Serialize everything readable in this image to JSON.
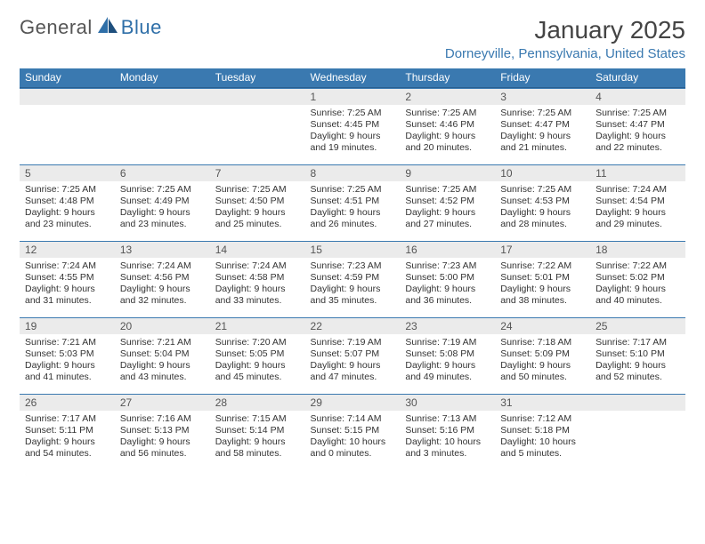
{
  "brand": {
    "part1": "General",
    "part2": "Blue"
  },
  "title": "January 2025",
  "location": "Dorneyville, Pennsylvania, United States",
  "colors": {
    "header_bg": "#3a79b0",
    "header_text": "#ffffff",
    "daynum_bg": "#ebebeb",
    "rule": "#3a79b0",
    "location_text": "#3a79b0",
    "background": "#ffffff"
  },
  "typography": {
    "title_fontsize": 28,
    "location_fontsize": 15,
    "header_fontsize": 12,
    "daynum_fontsize": 12,
    "body_fontsize": 10.5
  },
  "weekdays": [
    "Sunday",
    "Monday",
    "Tuesday",
    "Wednesday",
    "Thursday",
    "Friday",
    "Saturday"
  ],
  "weeks": [
    [
      {
        "n": "",
        "sunrise": "",
        "sunset": "",
        "daylight1": "",
        "daylight2": ""
      },
      {
        "n": "",
        "sunrise": "",
        "sunset": "",
        "daylight1": "",
        "daylight2": ""
      },
      {
        "n": "",
        "sunrise": "",
        "sunset": "",
        "daylight1": "",
        "daylight2": ""
      },
      {
        "n": "1",
        "sunrise": "Sunrise: 7:25 AM",
        "sunset": "Sunset: 4:45 PM",
        "daylight1": "Daylight: 9 hours",
        "daylight2": "and 19 minutes."
      },
      {
        "n": "2",
        "sunrise": "Sunrise: 7:25 AM",
        "sunset": "Sunset: 4:46 PM",
        "daylight1": "Daylight: 9 hours",
        "daylight2": "and 20 minutes."
      },
      {
        "n": "3",
        "sunrise": "Sunrise: 7:25 AM",
        "sunset": "Sunset: 4:47 PM",
        "daylight1": "Daylight: 9 hours",
        "daylight2": "and 21 minutes."
      },
      {
        "n": "4",
        "sunrise": "Sunrise: 7:25 AM",
        "sunset": "Sunset: 4:47 PM",
        "daylight1": "Daylight: 9 hours",
        "daylight2": "and 22 minutes."
      }
    ],
    [
      {
        "n": "5",
        "sunrise": "Sunrise: 7:25 AM",
        "sunset": "Sunset: 4:48 PM",
        "daylight1": "Daylight: 9 hours",
        "daylight2": "and 23 minutes."
      },
      {
        "n": "6",
        "sunrise": "Sunrise: 7:25 AM",
        "sunset": "Sunset: 4:49 PM",
        "daylight1": "Daylight: 9 hours",
        "daylight2": "and 23 minutes."
      },
      {
        "n": "7",
        "sunrise": "Sunrise: 7:25 AM",
        "sunset": "Sunset: 4:50 PM",
        "daylight1": "Daylight: 9 hours",
        "daylight2": "and 25 minutes."
      },
      {
        "n": "8",
        "sunrise": "Sunrise: 7:25 AM",
        "sunset": "Sunset: 4:51 PM",
        "daylight1": "Daylight: 9 hours",
        "daylight2": "and 26 minutes."
      },
      {
        "n": "9",
        "sunrise": "Sunrise: 7:25 AM",
        "sunset": "Sunset: 4:52 PM",
        "daylight1": "Daylight: 9 hours",
        "daylight2": "and 27 minutes."
      },
      {
        "n": "10",
        "sunrise": "Sunrise: 7:25 AM",
        "sunset": "Sunset: 4:53 PM",
        "daylight1": "Daylight: 9 hours",
        "daylight2": "and 28 minutes."
      },
      {
        "n": "11",
        "sunrise": "Sunrise: 7:24 AM",
        "sunset": "Sunset: 4:54 PM",
        "daylight1": "Daylight: 9 hours",
        "daylight2": "and 29 minutes."
      }
    ],
    [
      {
        "n": "12",
        "sunrise": "Sunrise: 7:24 AM",
        "sunset": "Sunset: 4:55 PM",
        "daylight1": "Daylight: 9 hours",
        "daylight2": "and 31 minutes."
      },
      {
        "n": "13",
        "sunrise": "Sunrise: 7:24 AM",
        "sunset": "Sunset: 4:56 PM",
        "daylight1": "Daylight: 9 hours",
        "daylight2": "and 32 minutes."
      },
      {
        "n": "14",
        "sunrise": "Sunrise: 7:24 AM",
        "sunset": "Sunset: 4:58 PM",
        "daylight1": "Daylight: 9 hours",
        "daylight2": "and 33 minutes."
      },
      {
        "n": "15",
        "sunrise": "Sunrise: 7:23 AM",
        "sunset": "Sunset: 4:59 PM",
        "daylight1": "Daylight: 9 hours",
        "daylight2": "and 35 minutes."
      },
      {
        "n": "16",
        "sunrise": "Sunrise: 7:23 AM",
        "sunset": "Sunset: 5:00 PM",
        "daylight1": "Daylight: 9 hours",
        "daylight2": "and 36 minutes."
      },
      {
        "n": "17",
        "sunrise": "Sunrise: 7:22 AM",
        "sunset": "Sunset: 5:01 PM",
        "daylight1": "Daylight: 9 hours",
        "daylight2": "and 38 minutes."
      },
      {
        "n": "18",
        "sunrise": "Sunrise: 7:22 AM",
        "sunset": "Sunset: 5:02 PM",
        "daylight1": "Daylight: 9 hours",
        "daylight2": "and 40 minutes."
      }
    ],
    [
      {
        "n": "19",
        "sunrise": "Sunrise: 7:21 AM",
        "sunset": "Sunset: 5:03 PM",
        "daylight1": "Daylight: 9 hours",
        "daylight2": "and 41 minutes."
      },
      {
        "n": "20",
        "sunrise": "Sunrise: 7:21 AM",
        "sunset": "Sunset: 5:04 PM",
        "daylight1": "Daylight: 9 hours",
        "daylight2": "and 43 minutes."
      },
      {
        "n": "21",
        "sunrise": "Sunrise: 7:20 AM",
        "sunset": "Sunset: 5:05 PM",
        "daylight1": "Daylight: 9 hours",
        "daylight2": "and 45 minutes."
      },
      {
        "n": "22",
        "sunrise": "Sunrise: 7:19 AM",
        "sunset": "Sunset: 5:07 PM",
        "daylight1": "Daylight: 9 hours",
        "daylight2": "and 47 minutes."
      },
      {
        "n": "23",
        "sunrise": "Sunrise: 7:19 AM",
        "sunset": "Sunset: 5:08 PM",
        "daylight1": "Daylight: 9 hours",
        "daylight2": "and 49 minutes."
      },
      {
        "n": "24",
        "sunrise": "Sunrise: 7:18 AM",
        "sunset": "Sunset: 5:09 PM",
        "daylight1": "Daylight: 9 hours",
        "daylight2": "and 50 minutes."
      },
      {
        "n": "25",
        "sunrise": "Sunrise: 7:17 AM",
        "sunset": "Sunset: 5:10 PM",
        "daylight1": "Daylight: 9 hours",
        "daylight2": "and 52 minutes."
      }
    ],
    [
      {
        "n": "26",
        "sunrise": "Sunrise: 7:17 AM",
        "sunset": "Sunset: 5:11 PM",
        "daylight1": "Daylight: 9 hours",
        "daylight2": "and 54 minutes."
      },
      {
        "n": "27",
        "sunrise": "Sunrise: 7:16 AM",
        "sunset": "Sunset: 5:13 PM",
        "daylight1": "Daylight: 9 hours",
        "daylight2": "and 56 minutes."
      },
      {
        "n": "28",
        "sunrise": "Sunrise: 7:15 AM",
        "sunset": "Sunset: 5:14 PM",
        "daylight1": "Daylight: 9 hours",
        "daylight2": "and 58 minutes."
      },
      {
        "n": "29",
        "sunrise": "Sunrise: 7:14 AM",
        "sunset": "Sunset: 5:15 PM",
        "daylight1": "Daylight: 10 hours",
        "daylight2": "and 0 minutes."
      },
      {
        "n": "30",
        "sunrise": "Sunrise: 7:13 AM",
        "sunset": "Sunset: 5:16 PM",
        "daylight1": "Daylight: 10 hours",
        "daylight2": "and 3 minutes."
      },
      {
        "n": "31",
        "sunrise": "Sunrise: 7:12 AM",
        "sunset": "Sunset: 5:18 PM",
        "daylight1": "Daylight: 10 hours",
        "daylight2": "and 5 minutes."
      },
      {
        "n": "",
        "sunrise": "",
        "sunset": "",
        "daylight1": "",
        "daylight2": ""
      }
    ]
  ]
}
